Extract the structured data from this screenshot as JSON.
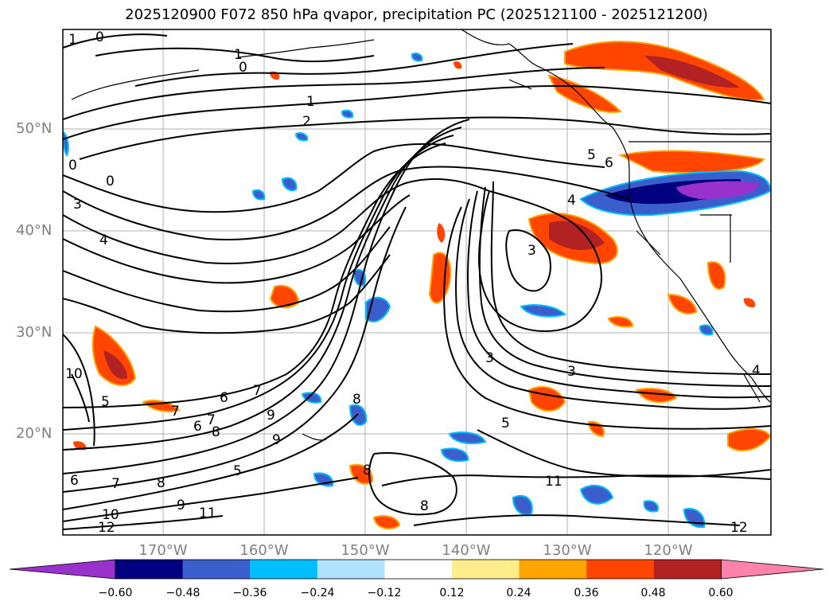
{
  "title": "2025120900 F072 850 hPa qvapor, precipitation PC (2025121100 - 2025121200)",
  "lat_labels": [
    "50°N",
    "40°N",
    "30°N",
    "20°N"
  ],
  "lon_labels": [
    "170°W",
    "160°W",
    "150°W",
    "140°W",
    "130°W",
    "120°W"
  ],
  "colorbar": {
    "colors": [
      "#9932CC",
      "#000080",
      "#3A5FCD",
      "#00BFFF",
      "#B0E2FF",
      "#FFFFFF",
      "#FFEC8B",
      "#FFA500",
      "#FF4500",
      "#B22222",
      "#FF82AB"
    ],
    "tick_labels": [
      "−0.60",
      "−0.48",
      "−0.36",
      "−0.24",
      "−0.12",
      "0.12",
      "0.24",
      "0.36",
      "0.48",
      "0.60"
    ]
  },
  "contour_labels": [
    "1",
    "0",
    "1",
    "0",
    "1",
    "2",
    "0",
    "0",
    "3",
    "4",
    "5",
    "6",
    "4",
    "3",
    "3",
    "3",
    "5",
    "7",
    "6",
    "8",
    "7",
    "10",
    "5",
    "7",
    "6",
    "8",
    "9",
    "5",
    "9",
    "8",
    "7",
    "10",
    "9",
    "6",
    "11",
    "12",
    "11",
    "8",
    "8",
    "12",
    "4"
  ]
}
